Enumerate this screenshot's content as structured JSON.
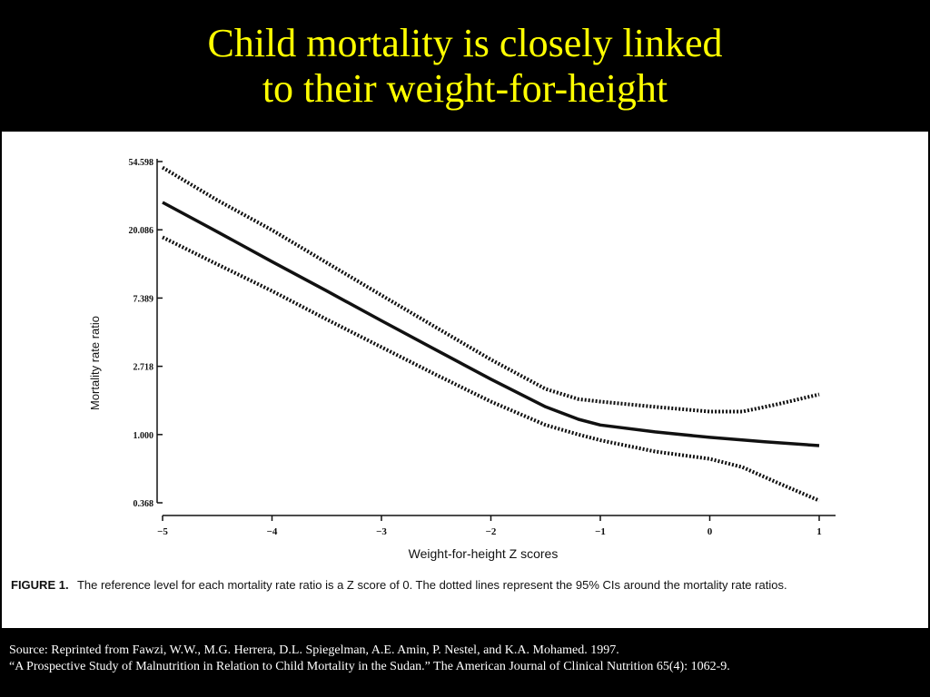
{
  "slide": {
    "title_line1": "Child mortality is closely linked",
    "title_line2": "to their weight-for-height",
    "source_line1": "Source: Reprinted from Fawzi, W.W., M.G. Herrera, D.L. Spiegelman, A.E. Amin, P. Nestel, and K.A. Mohamed. 1997.",
    "source_line2": "“A Prospective Study of Malnutrition in Relation to Child Mortality in the Sudan.” The American Journal of Clinical Nutrition 65(4): 1062-9.",
    "colors": {
      "background": "#000000",
      "title": "#ffff00",
      "panel": "#ffffff",
      "source": "#ffffff"
    }
  },
  "chart_data": {
    "type": "line",
    "title": "",
    "xlabel": "Weight-for-height Z scores",
    "ylabel": "Mortality rate ratio",
    "y_scale": "log",
    "xlim": [
      -5,
      1
    ],
    "ylim": [
      0.368,
      54.598
    ],
    "x_ticks": [
      -5,
      -4,
      -3,
      -2,
      -1,
      0,
      1
    ],
    "x_tick_labels": [
      "−5",
      "−4",
      "−3",
      "−2",
      "−1",
      "0",
      "1"
    ],
    "y_ticks": [
      0.368,
      1.0,
      2.718,
      7.389,
      20.086,
      54.598
    ],
    "y_tick_labels": [
      "0.368",
      "1.000",
      "2.718",
      "7.389",
      "20.086",
      "54.598"
    ],
    "caption_label": "FIGURE 1.",
    "caption_text": "The reference level for each mortality rate ratio is a Z score of 0. The dotted lines represent the 95% CIs around the mortality rate ratios.",
    "grid": false,
    "legend": "none",
    "series": [
      {
        "style": "solid",
        "x": [
          -5,
          -4.5,
          -4,
          -3.5,
          -3,
          -2.5,
          -2,
          -1.5,
          -1.2,
          -1,
          -0.5,
          0,
          0.5,
          1
        ],
        "y": [
          30,
          19.5,
          12.6,
          8.2,
          5.3,
          3.45,
          2.25,
          1.5,
          1.25,
          1.15,
          1.04,
          0.96,
          0.9,
          0.85
        ]
      },
      {
        "style": "dotted",
        "x": [
          -5,
          -4.5,
          -4,
          -3.5,
          -3,
          -2.5,
          -2,
          -1.5,
          -1.2,
          -1,
          -0.5,
          0,
          0.3,
          0.6,
          1
        ],
        "y": [
          50,
          31,
          20,
          12.4,
          7.7,
          4.8,
          3.0,
          1.95,
          1.68,
          1.62,
          1.5,
          1.4,
          1.4,
          1.55,
          1.8
        ]
      },
      {
        "style": "dotted",
        "x": [
          -5,
          -4.5,
          -4,
          -3.5,
          -3,
          -2.5,
          -2,
          -1.5,
          -1.2,
          -1,
          -0.5,
          0,
          0.3,
          0.6,
          1
        ],
        "y": [
          18,
          12.1,
          8.2,
          5.4,
          3.6,
          2.4,
          1.62,
          1.15,
          1.0,
          0.92,
          0.78,
          0.7,
          0.62,
          0.5,
          0.38
        ]
      }
    ]
  }
}
